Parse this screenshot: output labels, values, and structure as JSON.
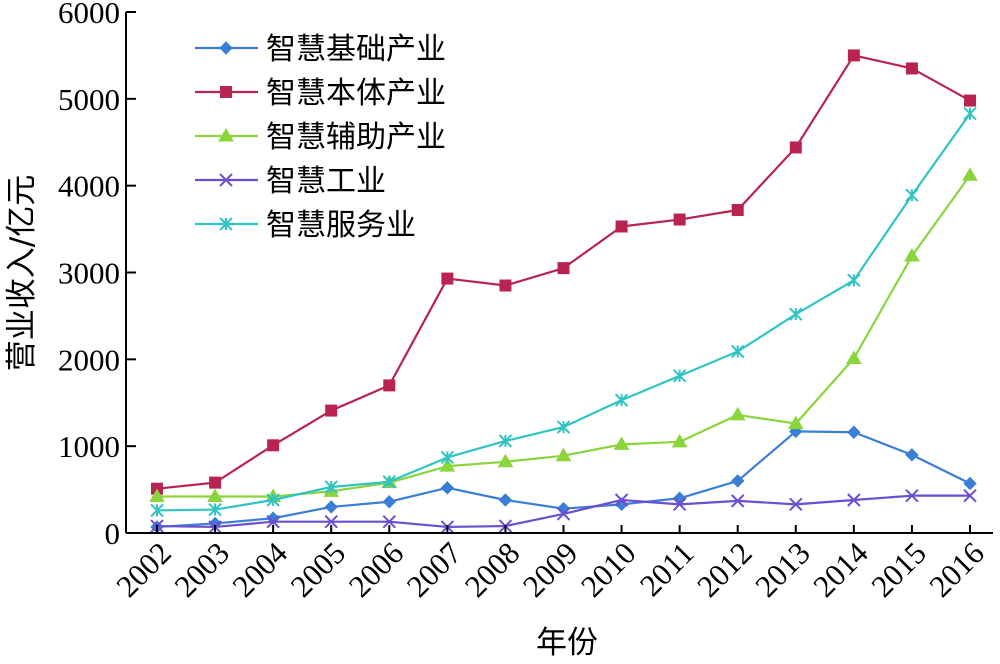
{
  "chart_data": {
    "type": "line",
    "title": "",
    "xlabel": "年份",
    "ylabel": "营业收入/亿元",
    "x": [
      "2002",
      "2003",
      "2004",
      "2005",
      "2006",
      "2007",
      "2008",
      "2009",
      "2010",
      "2011",
      "2012",
      "2013",
      "2014",
      "2015",
      "2016"
    ],
    "ylim": [
      0,
      6000
    ],
    "yticks": [
      "0",
      "1000",
      "2000",
      "3000",
      "4000",
      "5000",
      "6000"
    ],
    "grid": false,
    "legend_position": "top-left",
    "series": [
      {
        "name": "智慧基础产业",
        "color": "#3a7fd5",
        "marker": "diamond",
        "values": [
          70,
          110,
          170,
          300,
          360,
          520,
          380,
          280,
          330,
          400,
          600,
          1170,
          1160,
          900,
          570
        ]
      },
      {
        "name": "智慧本体产业",
        "color": "#b8244f",
        "marker": "square",
        "values": [
          510,
          580,
          1010,
          1410,
          1700,
          2930,
          2850,
          3050,
          3530,
          3610,
          3720,
          4440,
          5500,
          5350,
          4980
        ]
      },
      {
        "name": "智慧辅助产业",
        "color": "#8ad43c",
        "marker": "triangle",
        "values": [
          420,
          420,
          420,
          480,
          580,
          770,
          820,
          890,
          1020,
          1050,
          1360,
          1260,
          2010,
          3190,
          4120
        ]
      },
      {
        "name": "智慧工业",
        "color": "#6a4fd0",
        "marker": "x",
        "values": [
          80,
          70,
          130,
          130,
          130,
          70,
          80,
          220,
          380,
          330,
          370,
          330,
          380,
          430,
          430
        ]
      },
      {
        "name": "智慧服务业",
        "color": "#2fc4c4",
        "marker": "star",
        "values": [
          260,
          270,
          380,
          530,
          590,
          870,
          1060,
          1220,
          1530,
          1810,
          2090,
          2520,
          2910,
          3890,
          4830
        ]
      }
    ]
  }
}
